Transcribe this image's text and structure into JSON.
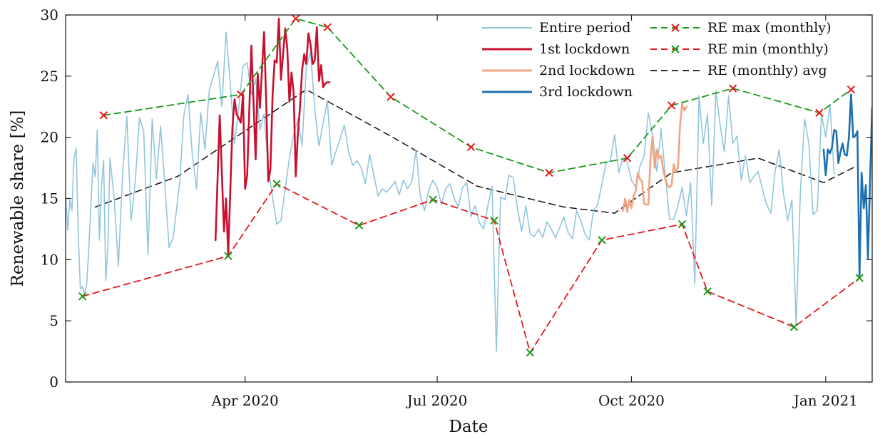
{
  "chart_data": {
    "type": "line",
    "title": "",
    "xlabel": "Date",
    "ylabel": "Renewable share [%]",
    "x_range": [
      "2020-01-07",
      "2021-01-23"
    ],
    "ylim": [
      0,
      30
    ],
    "y_ticks": [
      0,
      5,
      10,
      15,
      20,
      25,
      30
    ],
    "x_ticks": [
      {
        "date": "2020-04-01",
        "label": "Apr 2020"
      },
      {
        "date": "2020-07-01",
        "label": "Jul 2020"
      },
      {
        "date": "2020-10-01",
        "label": "Oct 2020"
      },
      {
        "date": "2021-01-01",
        "label": "Jan 2021"
      }
    ],
    "grid": false,
    "legend_position": "top-right",
    "colors": {
      "entire": "#91c5dd",
      "lockdown1": "#c8102e",
      "lockdown2": "#f0a582",
      "lockdown3": "#1f6fae",
      "re_max": "#1a9a1a",
      "re_min": "#e4191c",
      "re_avg": "#111111"
    },
    "series": [
      {
        "name": "Entire period",
        "key": "entire",
        "x": [
          "2020-01-07",
          "2020-01-08",
          "2020-01-09",
          "2020-01-10",
          "2020-01-11",
          "2020-01-12",
          "2020-01-13",
          "2020-01-14",
          "2020-01-15",
          "2020-01-16",
          "2020-01-17",
          "2020-01-18",
          "2020-01-19",
          "2020-01-20",
          "2020-01-21",
          "2020-01-22",
          "2020-01-23",
          "2020-01-24",
          "2020-01-25",
          "2020-01-26",
          "2020-01-27",
          "2020-01-28",
          "2020-01-30",
          "2020-02-01",
          "2020-02-03",
          "2020-02-05",
          "2020-02-07",
          "2020-02-09",
          "2020-02-11",
          "2020-02-13",
          "2020-02-15",
          "2020-02-17",
          "2020-02-19",
          "2020-02-21",
          "2020-02-23",
          "2020-02-25",
          "2020-02-27",
          "2020-03-01",
          "2020-03-03",
          "2020-03-05",
          "2020-03-07",
          "2020-03-09",
          "2020-03-11",
          "2020-03-13",
          "2020-03-15",
          "2020-03-17",
          "2020-03-19",
          "2020-03-21",
          "2020-03-23",
          "2020-03-25",
          "2020-03-27",
          "2020-03-29",
          "2020-03-31",
          "2020-04-02",
          "2020-04-04",
          "2020-04-06",
          "2020-04-08",
          "2020-04-10",
          "2020-04-12",
          "2020-04-14",
          "2020-04-16",
          "2020-04-18",
          "2020-04-20",
          "2020-04-22",
          "2020-04-24",
          "2020-04-26",
          "2020-04-28",
          "2020-04-30",
          "2020-05-02",
          "2020-05-04",
          "2020-05-06",
          "2020-05-08",
          "2020-05-10",
          "2020-05-12",
          "2020-05-14",
          "2020-05-16",
          "2020-05-18",
          "2020-05-20",
          "2020-05-22",
          "2020-05-24",
          "2020-05-26",
          "2020-05-28",
          "2020-05-30",
          "2020-06-01",
          "2020-06-03",
          "2020-06-05",
          "2020-06-07",
          "2020-06-09",
          "2020-06-11",
          "2020-06-13",
          "2020-06-15",
          "2020-06-17",
          "2020-06-19",
          "2020-06-21",
          "2020-06-23",
          "2020-06-25",
          "2020-06-27",
          "2020-06-29",
          "2020-07-01",
          "2020-07-03",
          "2020-07-05",
          "2020-07-07",
          "2020-07-09",
          "2020-07-11",
          "2020-07-13",
          "2020-07-15",
          "2020-07-17",
          "2020-07-19",
          "2020-07-21",
          "2020-07-23",
          "2020-07-25",
          "2020-07-27",
          "2020-07-29",
          "2020-07-31",
          "2020-08-02",
          "2020-08-04",
          "2020-08-06",
          "2020-08-08",
          "2020-08-10",
          "2020-08-12",
          "2020-08-14",
          "2020-08-16",
          "2020-08-18",
          "2020-08-20",
          "2020-08-22",
          "2020-08-24",
          "2020-08-26",
          "2020-08-28",
          "2020-08-30",
          "2020-09-01",
          "2020-09-03",
          "2020-09-05",
          "2020-09-07",
          "2020-09-09",
          "2020-09-11",
          "2020-09-13",
          "2020-09-15",
          "2020-09-17",
          "2020-09-19",
          "2020-09-21",
          "2020-09-23",
          "2020-09-25",
          "2020-09-27",
          "2020-09-29",
          "2020-10-01",
          "2020-10-03",
          "2020-10-05",
          "2020-10-07",
          "2020-10-09",
          "2020-10-11",
          "2020-10-13",
          "2020-10-15",
          "2020-10-17",
          "2020-10-19",
          "2020-10-21",
          "2020-10-23",
          "2020-10-25",
          "2020-10-27",
          "2020-10-29",
          "2020-10-31",
          "2020-11-02",
          "2020-11-04",
          "2020-11-06",
          "2020-11-08",
          "2020-11-10",
          "2020-11-12",
          "2020-11-14",
          "2020-11-16",
          "2020-11-18",
          "2020-11-20",
          "2020-11-22",
          "2020-11-24",
          "2020-11-26",
          "2020-11-28",
          "2020-11-30",
          "2020-12-02",
          "2020-12-04",
          "2020-12-06",
          "2020-12-08",
          "2020-12-10",
          "2020-12-12",
          "2020-12-14",
          "2020-12-16",
          "2020-12-18",
          "2020-12-20",
          "2020-12-22",
          "2020-12-24",
          "2020-12-26",
          "2020-12-28",
          "2020-12-30",
          "2021-01-01",
          "2021-01-03",
          "2021-01-05"
        ],
        "y": [
          15.2,
          12.4,
          14.9,
          14.0,
          18.3,
          19.1,
          12.0,
          7.6,
          7.8,
          7.2,
          8.0,
          11.0,
          14.5,
          17.9,
          16.8,
          20.6,
          11.6,
          16.0,
          18.1,
          8.3,
          11.0,
          18.3,
          15.0,
          9.5,
          17.0,
          21.7,
          13.2,
          16.4,
          21.6,
          20.5,
          10.4,
          21.5,
          16.6,
          20.9,
          16.1,
          11.0,
          11.8,
          16.3,
          21.8,
          23.5,
          18.6,
          15.8,
          22.0,
          19.0,
          23.8,
          25.0,
          26.2,
          22.5,
          28.6,
          24.4,
          19.5,
          22.4,
          25.8,
          26.1,
          23.5,
          24.8,
          20.6,
          21.9,
          17.5,
          15.1,
          12.9,
          13.2,
          15.8,
          18.3,
          20.2,
          21.5,
          19.3,
          25.7,
          27.0,
          22.3,
          19.3,
          21.2,
          23.0,
          17.7,
          18.8,
          19.9,
          21.0,
          18.8,
          17.7,
          18.1,
          17.5,
          16.2,
          18.6,
          16.9,
          15.2,
          15.8,
          15.5,
          15.9,
          16.4,
          15.3,
          16.5,
          15.8,
          16.4,
          19.0,
          15.2,
          14.0,
          15.7,
          16.5,
          15.9,
          14.5,
          15.8,
          16.2,
          15.0,
          14.3,
          15.9,
          16.3,
          13.5,
          14.4,
          13.0,
          12.5,
          14.4,
          16.0,
          2.5,
          15.1,
          14.9,
          16.9,
          16.7,
          14.2,
          12.3,
          14.4,
          12.1,
          11.9,
          12.5,
          11.8,
          13.1,
          12.5,
          11.8,
          12.6,
          13.5,
          12.2,
          11.7,
          14.0,
          13.2,
          12.1,
          11.6,
          14.0,
          14.5,
          16.2,
          17.9,
          18.1,
          20.2,
          17.1,
          18.3,
          18.0,
          16.5,
          15.9,
          17.6,
          18.5,
          22.0,
          20.1,
          17.2,
          20.7,
          17.0,
          13.3,
          13.3,
          14.4,
          15.9,
          13.6,
          16.3,
          8.0,
          23.4,
          19.5,
          21.9,
          14.4,
          23.8,
          21.0,
          18.8,
          23.4,
          19.5,
          20.1,
          16.5,
          18.5,
          16.3,
          16.8,
          17.2,
          15.8,
          14.5,
          13.8,
          17.2,
          19.0,
          15.4,
          13.2,
          14.9,
          4.6,
          15.5,
          21.5,
          19.5,
          13.7,
          14.0,
          21.9,
          20.0,
          22.7,
          17.0
        ]
      },
      {
        "name": "1st lockdown",
        "key": "lockdown1",
        "x": [
          "2020-03-18",
          "2020-03-20",
          "2020-03-22",
          "2020-03-23",
          "2020-03-24",
          "2020-03-25",
          "2020-03-26",
          "2020-03-27",
          "2020-03-28",
          "2020-03-30",
          "2020-03-31",
          "2020-04-01",
          "2020-04-02",
          "2020-04-04",
          "2020-04-06",
          "2020-04-07",
          "2020-04-08",
          "2020-04-10",
          "2020-04-11",
          "2020-04-12",
          "2020-04-13",
          "2020-04-14",
          "2020-04-15",
          "2020-04-16",
          "2020-04-17",
          "2020-04-18",
          "2020-04-20",
          "2020-04-21",
          "2020-04-22",
          "2020-04-23",
          "2020-04-24",
          "2020-04-25",
          "2020-04-26",
          "2020-04-27",
          "2020-04-28",
          "2020-04-29",
          "2020-04-30",
          "2020-05-01",
          "2020-05-02",
          "2020-05-03",
          "2020-05-04",
          "2020-05-05",
          "2020-05-06",
          "2020-05-07",
          "2020-05-08",
          "2020-05-09",
          "2020-05-10",
          "2020-05-11"
        ],
        "y": [
          11.6,
          21.8,
          12.3,
          15.0,
          10.4,
          15.6,
          20.8,
          23.1,
          21.9,
          21.2,
          23.5,
          15.8,
          16.9,
          27.5,
          18.2,
          25.2,
          22.4,
          28.6,
          22.9,
          16.4,
          17.4,
          23.4,
          26.3,
          26.1,
          29.7,
          24.7,
          28.9,
          27.2,
          22.9,
          25.3,
          23.6,
          16.8,
          20.3,
          22.4,
          25.5,
          26.8,
          26.0,
          28.5,
          27.6,
          26.0,
          26.3,
          29.0,
          24.6,
          25.9,
          24.1,
          24.4,
          24.5,
          24.5
        ]
      },
      {
        "name": "2nd lockdown",
        "key": "lockdown2",
        "x": [
          "2020-09-27",
          "2020-09-28",
          "2020-09-29",
          "2020-09-30",
          "2020-10-01",
          "2020-10-02",
          "2020-10-03",
          "2020-10-04",
          "2020-10-05",
          "2020-10-06",
          "2020-10-07",
          "2020-10-08",
          "2020-10-09",
          "2020-10-10",
          "2020-10-11",
          "2020-10-12",
          "2020-10-13",
          "2020-10-14",
          "2020-10-15",
          "2020-10-16",
          "2020-10-17",
          "2020-10-18",
          "2020-10-19",
          "2020-10-20",
          "2020-10-21",
          "2020-10-22",
          "2020-10-23",
          "2020-10-24",
          "2020-10-25",
          "2020-10-26",
          "2020-10-27"
        ],
        "y": [
          14.0,
          15.0,
          13.9,
          14.9,
          14.2,
          15.2,
          15.6,
          17.1,
          16.6,
          16.4,
          14.6,
          14.5,
          14.5,
          18.2,
          20.1,
          17.5,
          19.0,
          18.3,
          18.5,
          17.4,
          16.6,
          16.1,
          15.9,
          16.1,
          17.8,
          17.2,
          17.5,
          21.0,
          22.7,
          22.2,
          22.5
        ]
      },
      {
        "name": "3rd lockdown",
        "key": "lockdown3",
        "x": [
          "2020-12-31",
          "2021-01-01",
          "2021-01-02",
          "2021-01-03",
          "2021-01-04",
          "2021-01-05",
          "2021-01-06",
          "2021-01-07",
          "2021-01-08",
          "2021-01-09",
          "2021-01-10",
          "2021-01-11",
          "2021-01-12",
          "2021-01-13",
          "2021-01-14",
          "2021-01-15",
          "2021-01-16",
          "2021-01-17",
          "2021-01-18",
          "2021-01-19",
          "2021-01-20",
          "2021-01-21",
          "2021-01-22",
          "2021-01-23"
        ],
        "y": [
          19.0,
          16.9,
          19.0,
          18.7,
          19.2,
          20.6,
          20.5,
          17.9,
          18.8,
          19.5,
          18.6,
          18.5,
          20.0,
          23.5,
          20.0,
          20.1,
          20.5,
          8.6,
          17.1,
          14.2,
          16.1,
          10.1,
          16.5,
          22.4
        ]
      },
      {
        "name": "RE max (monthly)",
        "key": "re_max",
        "x": [
          "2020-01-25",
          "2020-03-30",
          "2020-04-25",
          "2020-05-10",
          "2020-06-09",
          "2020-07-17",
          "2020-08-23",
          "2020-09-29",
          "2020-10-20",
          "2020-11-18",
          "2020-12-29",
          "2021-01-13"
        ],
        "y": [
          21.8,
          23.5,
          29.7,
          29.0,
          23.3,
          19.2,
          17.1,
          18.3,
          22.6,
          24.0,
          22.0,
          23.9
        ]
      },
      {
        "name": "RE min (monthly)",
        "key": "re_min",
        "x": [
          "2020-01-15",
          "2020-03-24",
          "2020-04-16",
          "2020-05-25",
          "2020-06-29",
          "2020-07-28",
          "2020-08-14",
          "2020-09-17",
          "2020-10-25",
          "2020-11-06",
          "2020-12-17",
          "2021-01-17"
        ],
        "y": [
          7.0,
          10.3,
          16.2,
          12.8,
          14.9,
          13.2,
          2.4,
          11.6,
          12.9,
          7.4,
          4.5,
          8.5
        ]
      },
      {
        "name": "RE (monthly) avg",
        "key": "re_avg",
        "x": [
          "2020-01-21",
          "2020-02-29",
          "2020-04-30",
          "2020-06-10",
          "2020-07-20",
          "2020-08-30",
          "2020-09-23",
          "2020-10-20",
          "2020-11-30",
          "2020-12-31",
          "2021-01-15"
        ],
        "y": [
          14.3,
          16.8,
          23.9,
          20.0,
          16.0,
          14.3,
          13.8,
          17.1,
          18.3,
          16.3,
          17.6
        ]
      }
    ]
  }
}
